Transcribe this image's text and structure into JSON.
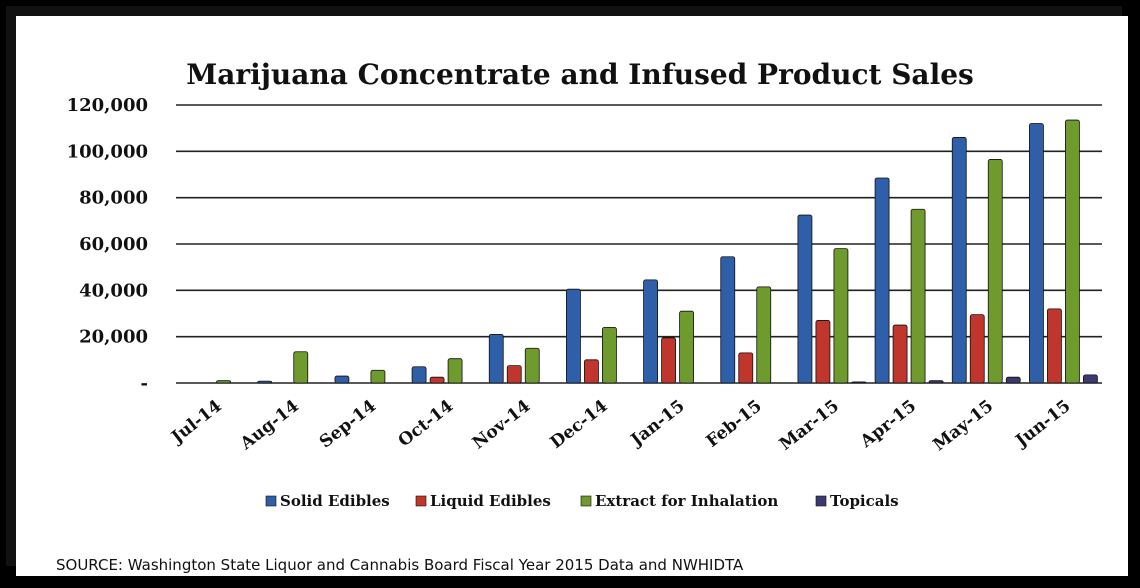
{
  "chart_data": {
    "type": "bar",
    "title": "Marijuana Concentrate and Infused Product Sales",
    "categories": [
      "Jul-14",
      "Aug-14",
      "Sep-14",
      "Oct-14",
      "Nov-14",
      "Dec-14",
      "Jan-15",
      "Feb-15",
      "Mar-15",
      "Apr-15",
      "May-15",
      "Jun-15"
    ],
    "series": [
      {
        "name": "Solid Edibles",
        "color": "#2f5fa8",
        "values": [
          0,
          800,
          3000,
          7000,
          21000,
          40500,
          44500,
          54500,
          72500,
          88500,
          106000,
          112000
        ]
      },
      {
        "name": "Liquid Edibles",
        "color": "#c0362c",
        "values": [
          0,
          0,
          0,
          2500,
          7500,
          10000,
          19500,
          13000,
          27000,
          25000,
          29500,
          32000
        ]
      },
      {
        "name": "Extract for Inhalation",
        "color": "#6e9a2e",
        "values": [
          1000,
          13500,
          5500,
          10500,
          15000,
          24000,
          31000,
          41500,
          58000,
          75000,
          96500,
          113500
        ]
      },
      {
        "name": "Topicals",
        "color": "#3b3a6e",
        "values": [
          0,
          0,
          0,
          0,
          0,
          0,
          0,
          0,
          500,
          1000,
          2500,
          3500
        ]
      }
    ],
    "ylim": [
      0,
      120000
    ],
    "yticks": [
      0,
      20000,
      40000,
      60000,
      80000,
      100000,
      120000
    ],
    "ytick_labels": [
      "-",
      "20,000",
      "40,000",
      "60,000",
      "80,000",
      "100,000",
      "120,000"
    ],
    "grid": true,
    "legend_position": "bottom"
  },
  "source_text": "SOURCE: Washington State Liquor and Cannabis Board Fiscal Year 2015 Data and NWHIDTA"
}
